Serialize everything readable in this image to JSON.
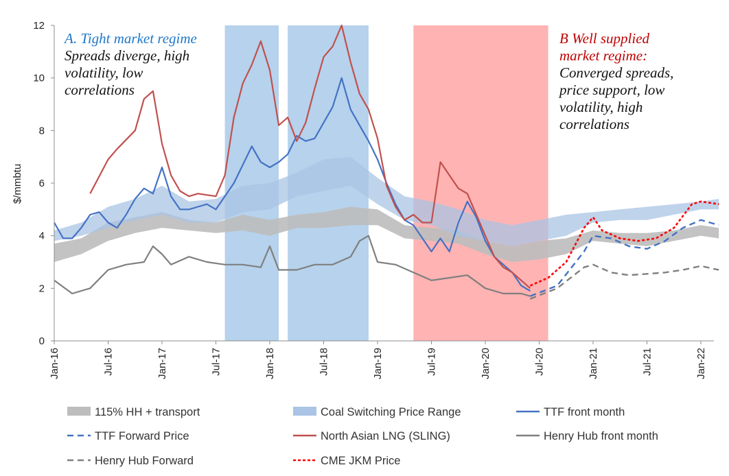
{
  "chart_data": {
    "type": "line",
    "ylabel": "$/mmbtu",
    "ylim": [
      0,
      12
    ],
    "yticks": [
      "0",
      "2",
      "4",
      "6",
      "8",
      "10",
      "12"
    ],
    "xticks": [
      "Jan-16",
      "Jul-16",
      "Jan-17",
      "Jul-17",
      "Jan-18",
      "Jul-18",
      "Jan-19",
      "Jul-19",
      "Jan-20",
      "Jul-20",
      "Jan-21",
      "Jul-21",
      "Jan-22"
    ],
    "x_range": [
      "2016-01",
      "2022-03"
    ],
    "grid": false,
    "legend_position": "bottom",
    "colors": {
      "hh_band": "#bdbdbd",
      "coal_band": "#a9c4e4",
      "ttf": "#4472c4",
      "sling": "#c0504d",
      "henry_hub": "#7f7f7f",
      "jkm": "#ff0000",
      "shade_blue": "#9dc3e6",
      "shade_red": "#ff9999",
      "annotation_a": "#1f78c8",
      "annotation_b": "#c00000"
    },
    "shaded_regions": [
      {
        "start": "2017-08",
        "end": "2018-02",
        "color": "blue"
      },
      {
        "start": "2018-03",
        "end": "2018-12",
        "color": "blue"
      },
      {
        "start": "2019-05",
        "end": "2020-08",
        "color": "red"
      }
    ],
    "bands": [
      {
        "name": "115% HH + transport",
        "x": [
          "2016-01",
          "2016-04",
          "2016-07",
          "2016-10",
          "2017-01",
          "2017-04",
          "2017-07",
          "2017-10",
          "2018-01",
          "2018-04",
          "2018-07",
          "2018-10",
          "2019-01",
          "2019-04",
          "2019-07",
          "2019-10",
          "2020-01",
          "2020-04",
          "2020-07",
          "2020-10",
          "2021-01",
          "2021-04",
          "2021-07",
          "2021-10",
          "2022-01",
          "2022-03"
        ],
        "low": [
          3.0,
          3.3,
          3.8,
          4.1,
          4.3,
          4.2,
          4.1,
          4.2,
          4.0,
          4.3,
          4.3,
          4.4,
          4.4,
          3.9,
          3.8,
          3.7,
          3.3,
          3.0,
          3.1,
          3.3,
          3.8,
          3.7,
          3.6,
          3.8,
          4.0,
          3.9
        ],
        "high": [
          3.7,
          3.9,
          4.5,
          4.7,
          4.9,
          4.6,
          4.5,
          4.8,
          4.6,
          4.8,
          4.9,
          5.1,
          5.0,
          4.4,
          4.3,
          4.2,
          3.8,
          3.6,
          3.8,
          3.9,
          4.2,
          4.1,
          4.1,
          4.2,
          4.4,
          4.3
        ]
      },
      {
        "name": "Coal Switching Price Range",
        "x": [
          "2016-01",
          "2016-04",
          "2016-07",
          "2016-10",
          "2017-01",
          "2017-04",
          "2017-07",
          "2017-10",
          "2018-01",
          "2018-04",
          "2018-07",
          "2018-10",
          "2019-01",
          "2019-04",
          "2019-07",
          "2019-10",
          "2020-01",
          "2020-04",
          "2020-07",
          "2020-10",
          "2021-01",
          "2021-04",
          "2021-07",
          "2021-10",
          "2022-01",
          "2022-03"
        ],
        "low": [
          3.8,
          4.0,
          4.3,
          4.6,
          4.8,
          4.5,
          4.5,
          4.9,
          5.0,
          5.5,
          5.7,
          5.9,
          5.2,
          4.6,
          4.4,
          4.0,
          3.8,
          3.6,
          3.8,
          4.0,
          4.5,
          4.6,
          4.6,
          4.8,
          5.0,
          5.0
        ],
        "high": [
          4.2,
          4.5,
          5.1,
          5.4,
          5.9,
          5.3,
          5.4,
          5.9,
          6.0,
          6.4,
          6.9,
          7.0,
          6.2,
          5.5,
          5.3,
          5.0,
          4.6,
          4.4,
          4.6,
          4.8,
          4.9,
          5.0,
          5.1,
          5.2,
          5.3,
          5.4
        ]
      }
    ],
    "series": [
      {
        "name": "TTF front month",
        "x": [
          "2016-01",
          "2016-02",
          "2016-03",
          "2016-04",
          "2016-05",
          "2016-06",
          "2016-07",
          "2016-08",
          "2016-09",
          "2016-10",
          "2016-11",
          "2016-12",
          "2017-01",
          "2017-02",
          "2017-03",
          "2017-04",
          "2017-05",
          "2017-06",
          "2017-07",
          "2017-08",
          "2017-09",
          "2017-10",
          "2017-11",
          "2017-12",
          "2018-01",
          "2018-02",
          "2018-03",
          "2018-04",
          "2018-05",
          "2018-06",
          "2018-07",
          "2018-08",
          "2018-09",
          "2018-10",
          "2018-11",
          "2018-12",
          "2019-01",
          "2019-02",
          "2019-03",
          "2019-04",
          "2019-05",
          "2019-06",
          "2019-07",
          "2019-08",
          "2019-09",
          "2019-10",
          "2019-11",
          "2019-12",
          "2020-01",
          "2020-02",
          "2020-03",
          "2020-04",
          "2020-05",
          "2020-06"
        ],
        "y": [
          4.5,
          3.9,
          3.9,
          4.3,
          4.8,
          4.9,
          4.5,
          4.3,
          4.8,
          5.4,
          5.8,
          5.6,
          6.6,
          5.5,
          5.0,
          5.0,
          5.1,
          5.2,
          5.0,
          5.5,
          6.0,
          6.7,
          7.4,
          6.8,
          6.6,
          6.8,
          7.1,
          7.8,
          7.6,
          7.7,
          8.3,
          8.9,
          10.0,
          8.8,
          8.2,
          7.6,
          6.9,
          6.0,
          5.2,
          4.6,
          4.4,
          3.9,
          3.4,
          3.9,
          3.4,
          4.5,
          5.3,
          4.7,
          3.8,
          3.2,
          2.9,
          2.6,
          2.1,
          1.9
        ]
      },
      {
        "name": "TTF Forward Price",
        "x": [
          "2020-06",
          "2020-09",
          "2020-12",
          "2021-01",
          "2021-03",
          "2021-05",
          "2021-07",
          "2021-09",
          "2021-11",
          "2022-01",
          "2022-03"
        ],
        "y": [
          1.7,
          2.1,
          3.4,
          4.0,
          3.9,
          3.6,
          3.5,
          3.8,
          4.3,
          4.6,
          4.4
        ]
      },
      {
        "name": "North Asian LNG (SLING)",
        "x": [
          "2016-05",
          "2016-07",
          "2016-08",
          "2016-10",
          "2016-11",
          "2016-12",
          "2017-01",
          "2017-02",
          "2017-03",
          "2017-04",
          "2017-05",
          "2017-07",
          "2017-08",
          "2017-09",
          "2017-10",
          "2017-11",
          "2017-12",
          "2018-01",
          "2018-02",
          "2018-03",
          "2018-04",
          "2018-05",
          "2018-06",
          "2018-07",
          "2018-08",
          "2018-09",
          "2018-10",
          "2018-11",
          "2018-12",
          "2019-01",
          "2019-02",
          "2019-03",
          "2019-04",
          "2019-05",
          "2019-06",
          "2019-07",
          "2019-08",
          "2019-09",
          "2019-10",
          "2019-11",
          "2019-12",
          "2020-01",
          "2020-02",
          "2020-03",
          "2020-04",
          "2020-05",
          "2020-06"
        ],
        "y": [
          5.6,
          6.9,
          7.3,
          8.0,
          9.2,
          9.5,
          7.5,
          6.3,
          5.7,
          5.5,
          5.6,
          5.5,
          6.3,
          8.5,
          9.8,
          10.5,
          11.4,
          10.3,
          8.2,
          8.5,
          7.6,
          8.3,
          9.6,
          10.8,
          11.2,
          12.0,
          10.6,
          9.4,
          8.8,
          7.7,
          5.9,
          5.1,
          4.6,
          4.8,
          4.5,
          4.5,
          6.8,
          6.3,
          5.8,
          5.6,
          4.8,
          4.0,
          3.2,
          2.8,
          2.6,
          2.3,
          2.0
        ]
      },
      {
        "name": "Henry Hub front month",
        "x": [
          "2016-01",
          "2016-03",
          "2016-05",
          "2016-07",
          "2016-09",
          "2016-11",
          "2016-12",
          "2017-01",
          "2017-02",
          "2017-04",
          "2017-06",
          "2017-08",
          "2017-10",
          "2017-12",
          "2018-01",
          "2018-02",
          "2018-04",
          "2018-06",
          "2018-08",
          "2018-10",
          "2018-11",
          "2018-12",
          "2019-01",
          "2019-03",
          "2019-05",
          "2019-07",
          "2019-09",
          "2019-11",
          "2020-01",
          "2020-03",
          "2020-05",
          "2020-06"
        ],
        "y": [
          2.3,
          1.8,
          2.0,
          2.7,
          2.9,
          3.0,
          3.6,
          3.3,
          2.9,
          3.2,
          3.0,
          2.9,
          2.9,
          2.8,
          3.6,
          2.7,
          2.7,
          2.9,
          2.9,
          3.2,
          3.8,
          4.0,
          3.0,
          2.9,
          2.6,
          2.3,
          2.4,
          2.5,
          2.0,
          1.8,
          1.8,
          1.7
        ]
      },
      {
        "name": "Henry Hub Forward",
        "x": [
          "2020-06",
          "2020-09",
          "2020-12",
          "2021-01",
          "2021-03",
          "2021-05",
          "2021-07",
          "2021-09",
          "2021-11",
          "2022-01",
          "2022-03"
        ],
        "y": [
          1.6,
          2.0,
          2.8,
          2.9,
          2.6,
          2.5,
          2.55,
          2.6,
          2.7,
          2.85,
          2.7
        ]
      },
      {
        "name": "CME JKM Price",
        "x": [
          "2020-06",
          "2020-08",
          "2020-10",
          "2020-12",
          "2021-01",
          "2021-02",
          "2021-04",
          "2021-06",
          "2021-08",
          "2021-10",
          "2021-12",
          "2022-01",
          "2022-03"
        ],
        "y": [
          2.1,
          2.4,
          3.0,
          4.3,
          4.7,
          4.2,
          3.9,
          3.8,
          3.9,
          4.3,
          5.2,
          5.3,
          5.2
        ]
      }
    ],
    "legend": [
      {
        "label": "115% HH + transport",
        "key": "hh_band",
        "style": "band"
      },
      {
        "label": "Coal Switching Price Range",
        "key": "coal_band",
        "style": "band"
      },
      {
        "label": "TTF front month",
        "key": "ttf",
        "style": "solid"
      },
      {
        "label": "TTF Forward Price",
        "key": "ttf",
        "style": "dash"
      },
      {
        "label": "North Asian LNG (SLING)",
        "key": "sling",
        "style": "solid"
      },
      {
        "label": "Henry Hub front month",
        "key": "henry_hub",
        "style": "solid"
      },
      {
        "label": "Henry Hub Forward",
        "key": "henry_hub",
        "style": "dash"
      },
      {
        "label": "CME JKM Price",
        "key": "jkm",
        "style": "dot"
      }
    ],
    "annotations": {
      "a_title": "A. Tight market regime",
      "a_lines": [
        "Spreads diverge, high",
        "volatility, low",
        "correlations"
      ],
      "b_title_lines": [
        "B Well supplied",
        "market regime:"
      ],
      "b_lines": [
        "Converged spreads,",
        "price support, low",
        "volatility, high",
        "correlations"
      ]
    }
  }
}
